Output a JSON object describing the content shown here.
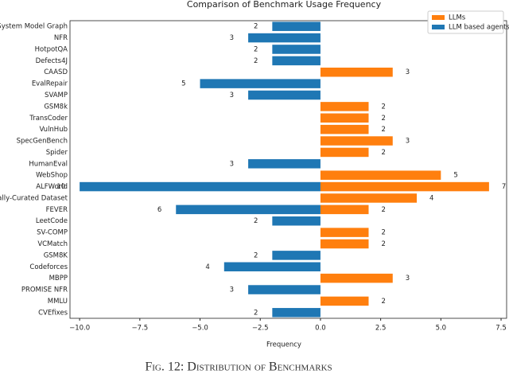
{
  "chart_data": {
    "type": "diverging-bar",
    "title": "Comparison of Benchmark Usage Frequency",
    "xlabel": "Frequency",
    "caption": "Fig. 12: Distribution of Benchmarks",
    "categories": [
      "System Model Graph",
      "NFR",
      "HotpotQA",
      "Defects4J",
      "CAASD",
      "EvalRepair",
      "SVAMP",
      "GSM8k",
      "TransCoder",
      "VulnHub",
      "SpecGenBench",
      "Spider",
      "HumanEval",
      "WebShop",
      "ALFWorld",
      "Manually-Curated Dataset",
      "FEVER",
      "LeetCode",
      "SV-COMP",
      "VCMatch",
      "GSM8K",
      "Codeforces",
      "MBPP",
      "PROMISE NFR",
      "MMLU",
      "CVEfixes"
    ],
    "series": [
      {
        "name": "LLMs",
        "color": "#ff7f0e",
        "values": [
          null,
          null,
          null,
          null,
          3,
          null,
          null,
          2,
          2,
          2,
          3,
          2,
          null,
          5,
          7,
          4,
          2,
          null,
          2,
          2,
          null,
          null,
          3,
          null,
          2,
          null
        ],
        "value_labels": [
          null,
          null,
          null,
          null,
          "3",
          null,
          null,
          "2",
          "2",
          "2",
          "3",
          "2",
          null,
          "5",
          "7",
          "4",
          "2",
          null,
          "2",
          "2",
          null,
          null,
          "3",
          null,
          "2",
          null
        ]
      },
      {
        "name": "LLM based agents",
        "color": "#1f77b4",
        "values": [
          -2,
          -3,
          -2,
          -2,
          null,
          -5,
          -3,
          null,
          null,
          null,
          null,
          null,
          -3,
          null,
          -10,
          null,
          -6,
          -2,
          null,
          null,
          -2,
          -4,
          null,
          -3,
          null,
          -2
        ],
        "value_labels": [
          "2",
          "3",
          "2",
          "2",
          null,
          "5",
          "3",
          null,
          null,
          null,
          null,
          null,
          "3",
          null,
          "10",
          null,
          "6",
          "2",
          null,
          null,
          "2",
          "4",
          null,
          "3",
          null,
          "2"
        ]
      }
    ],
    "xlim": [
      -10.4,
      7.73
    ],
    "xticks": [
      {
        "value": -10,
        "label": "−10.0"
      },
      {
        "value": -7.5,
        "label": "−7.5"
      },
      {
        "value": -5,
        "label": "−5.0"
      },
      {
        "value": -2.5,
        "label": "−2.5"
      },
      {
        "value": 0,
        "label": "0.0"
      },
      {
        "value": 2.5,
        "label": "2.5"
      },
      {
        "value": 5,
        "label": "5.0"
      },
      {
        "value": 7.5,
        "label": "7.5"
      }
    ],
    "legend": "upper right"
  }
}
